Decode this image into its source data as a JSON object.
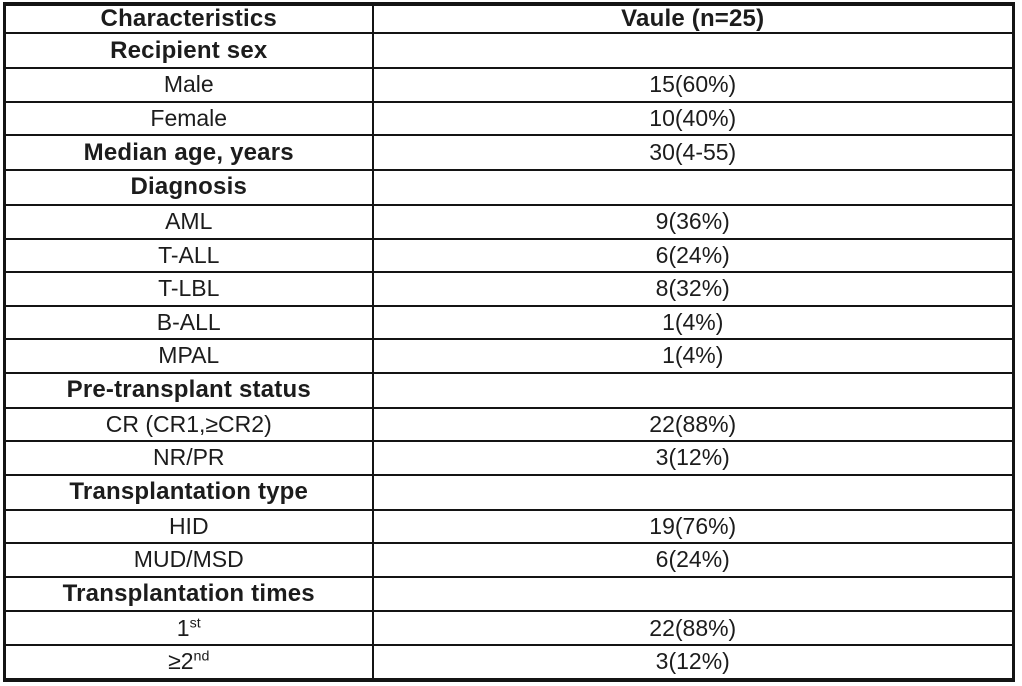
{
  "table": {
    "columns": [
      "Characteristics",
      "Vaule (n=25)"
    ],
    "rows": [
      {
        "label": "Recipient sex",
        "value": "",
        "bold": true
      },
      {
        "label": "Male",
        "value": "15(60%)"
      },
      {
        "label": "Female",
        "value": "10(40%)"
      },
      {
        "label": "Median age, years",
        "value": "30(4-55)",
        "bold": true
      },
      {
        "label": "Diagnosis",
        "value": "",
        "bold": true
      },
      {
        "label": "AML",
        "value": "9(36%)"
      },
      {
        "label": "T-ALL",
        "value": "6(24%)"
      },
      {
        "label": "T-LBL",
        "value": "8(32%)"
      },
      {
        "label": "B-ALL",
        "value": "1(4%)"
      },
      {
        "label": "MPAL",
        "value": "1(4%)"
      },
      {
        "label": "Pre-transplant status",
        "value": "",
        "bold": true
      },
      {
        "label": "CR (CR1,≥CR2)",
        "value": "22(88%)"
      },
      {
        "label": "NR/PR",
        "value": "3(12%)"
      },
      {
        "label": "Transplantation type",
        "value": "",
        "bold": true
      },
      {
        "label": "HID",
        "value": "19(76%)"
      },
      {
        "label": "MUD/MSD",
        "value": "6(24%)"
      },
      {
        "label": "Transplantation times",
        "value": "",
        "bold": true
      },
      {
        "label": "1",
        "sup": "st",
        "value": "22(88%)"
      },
      {
        "label": "≥2",
        "sup": "nd",
        "value": "3(12%)"
      }
    ]
  }
}
